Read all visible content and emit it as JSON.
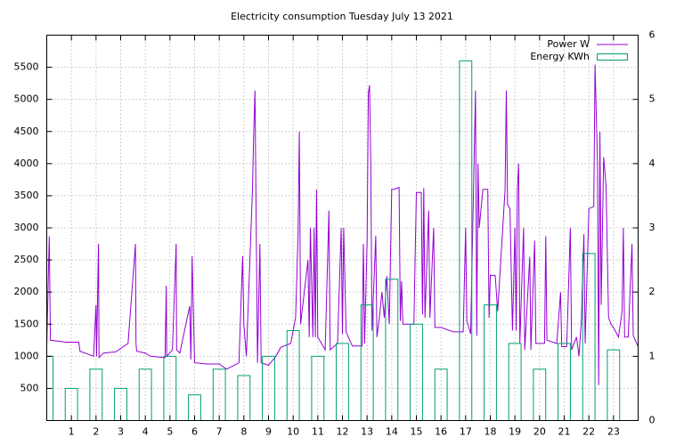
{
  "chart_data": {
    "type": "line",
    "title": "Electricity consumption Tuesday July 13 2021",
    "xlim": [
      0,
      24
    ],
    "xticks": [
      1,
      2,
      3,
      4,
      5,
      6,
      7,
      8,
      9,
      10,
      11,
      12,
      13,
      14,
      15,
      16,
      17,
      18,
      19,
      20,
      21,
      22,
      23
    ],
    "ylim": [
      0,
      6000
    ],
    "yticks": [
      500,
      1000,
      1500,
      2000,
      2500,
      3000,
      3500,
      4000,
      4500,
      5000,
      5500
    ],
    "y2lim": [
      0,
      6
    ],
    "y2ticks": [
      0,
      1,
      2,
      3,
      4,
      5,
      6
    ],
    "grid": true,
    "legend": "top-right",
    "series": [
      {
        "name": "Power W",
        "color": "#9400d3",
        "kind": "line",
        "x": [
          0.0,
          0.1,
          0.15,
          0.8,
          1.3,
          1.35,
          1.9,
          2.0,
          2.02,
          2.1,
          2.12,
          2.3,
          2.8,
          3.3,
          3.6,
          3.62,
          3.65,
          4.0,
          4.2,
          4.8,
          4.85,
          4.87,
          5.1,
          5.25,
          5.27,
          5.4,
          5.8,
          5.85,
          5.9,
          6.0,
          6.5,
          7.0,
          7.3,
          7.8,
          7.95,
          8.0,
          8.1,
          8.35,
          8.4,
          8.45,
          8.5,
          8.55,
          8.65,
          8.7,
          9.0,
          9.3,
          9.5,
          9.9,
          10.1,
          10.2,
          10.25,
          10.3,
          10.6,
          10.65,
          10.7,
          10.8,
          10.85,
          10.9,
          10.95,
          11.0,
          11.3,
          11.45,
          11.5,
          11.8,
          11.95,
          12.0,
          12.05,
          12.15,
          12.4,
          12.8,
          12.85,
          12.9,
          13.0,
          13.05,
          13.1,
          13.15,
          13.2,
          13.35,
          13.4,
          13.5,
          13.6,
          13.7,
          13.8,
          13.9,
          14.0,
          14.1,
          14.3,
          14.35,
          14.4,
          14.45,
          14.9,
          15.0,
          15.2,
          15.25,
          15.3,
          15.35,
          15.5,
          15.55,
          15.7,
          15.75,
          16.0,
          16.5,
          16.9,
          17.0,
          17.05,
          17.2,
          17.4,
          17.45,
          17.5,
          17.55,
          17.7,
          17.9,
          17.95,
          18.0,
          18.2,
          18.3,
          18.6,
          18.65,
          18.7,
          18.8,
          18.9,
          19.0,
          19.05,
          19.1,
          19.15,
          19.2,
          19.35,
          19.4,
          19.6,
          19.65,
          19.8,
          19.85,
          20.2,
          20.25,
          20.3,
          20.7,
          20.85,
          20.9,
          21.1,
          21.25,
          21.3,
          21.5,
          21.6,
          21.7,
          21.8,
          21.85,
          22.0,
          22.2,
          22.25,
          22.35,
          22.4,
          22.45,
          22.5,
          22.6,
          22.7,
          22.8,
          22.9,
          23.0,
          23.2,
          23.35,
          23.4,
          23.45,
          23.6,
          23.75,
          23.8,
          24.0
        ],
        "values": [
          1150,
          2870,
          1250,
          1220,
          1220,
          1080,
          1000,
          1800,
          1000,
          2750,
          980,
          1050,
          1070,
          1200,
          2750,
          1200,
          1080,
          1050,
          1000,
          980,
          2100,
          1000,
          1100,
          2750,
          1100,
          1050,
          1780,
          950,
          2560,
          900,
          880,
          880,
          800,
          900,
          2560,
          1500,
          1000,
          3600,
          4500,
          5140,
          3000,
          900,
          2750,
          900,
          860,
          1000,
          1140,
          1200,
          1600,
          2900,
          4500,
          1500,
          2500,
          1300,
          3000,
          1300,
          3000,
          1300,
          3600,
          1300,
          1100,
          3270,
          1100,
          1200,
          3000,
          1350,
          3000,
          1380,
          1160,
          1160,
          2750,
          1200,
          2800,
          5100,
          5220,
          4000,
          1400,
          2880,
          1300,
          1600,
          2000,
          1600,
          2250,
          1500,
          3600,
          3600,
          3630,
          1550,
          2170,
          1500,
          1500,
          3550,
          3550,
          1650,
          3620,
          1600,
          3270,
          1600,
          3000,
          1450,
          1450,
          1380,
          1380,
          3000,
          1550,
          1350,
          5140,
          1320,
          4000,
          3000,
          3600,
          3600,
          1600,
          2260,
          2260,
          1700,
          3600,
          5140,
          3360,
          3300,
          1400,
          3000,
          1400,
          3600,
          4000,
          1200,
          3000,
          1100,
          2550,
          1100,
          2800,
          1200,
          1200,
          2870,
          1250,
          1200,
          2000,
          1150,
          1150,
          3000,
          1100,
          1300,
          1000,
          1600,
          2900,
          1200,
          3300,
          3330,
          5540,
          4000,
          550,
          4500,
          1800,
          4100,
          3650,
          1600,
          1500,
          1450,
          1300,
          1700,
          3000,
          1300,
          1300,
          2750,
          1320,
          1150
        ]
      },
      {
        "name": "Energy KWh",
        "color": "#009e73",
        "kind": "boxes",
        "axis": "y2",
        "box_width": 0.5,
        "x": [
          0,
          1,
          2,
          3,
          4,
          5,
          6,
          7,
          8,
          9,
          10,
          11,
          12,
          13,
          14,
          15,
          16,
          17,
          18,
          19,
          20,
          21,
          22,
          23
        ],
        "values": [
          1.0,
          0.5,
          0.8,
          0.5,
          0.8,
          1.0,
          0.4,
          0.8,
          0.7,
          1.0,
          1.4,
          1.0,
          1.2,
          1.8,
          2.2,
          1.5,
          0.8,
          5.6,
          1.8,
          1.2,
          0.8,
          1.2,
          2.6,
          1.1
        ]
      }
    ]
  }
}
